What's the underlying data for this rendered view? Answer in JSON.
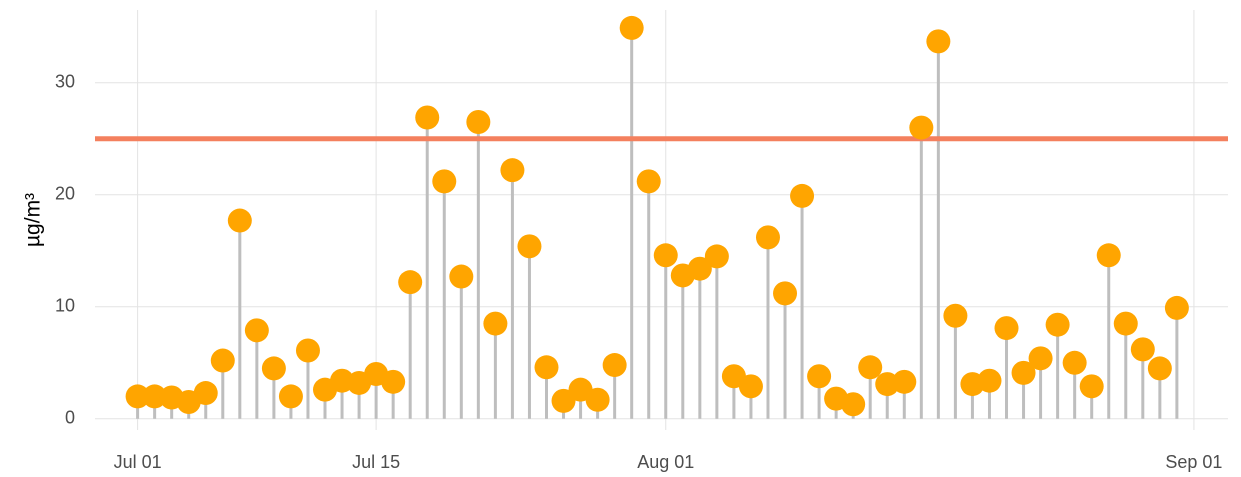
{
  "chart_data": {
    "type": "lollipop",
    "y_label": "µg/m³",
    "x": [
      0,
      1,
      2,
      3,
      4,
      5,
      6,
      7,
      8,
      9,
      10,
      11,
      12,
      13,
      14,
      15,
      16,
      17,
      18,
      19,
      20,
      21,
      22,
      23,
      24,
      25,
      26,
      27,
      28,
      29,
      30,
      31,
      32,
      33,
      34,
      35,
      36,
      37,
      38,
      39,
      40,
      41,
      42,
      43,
      44,
      45,
      46,
      47,
      48,
      49,
      50,
      51,
      52,
      53,
      54,
      55,
      56,
      57,
      58,
      59,
      60,
      61
    ],
    "values": [
      2.0,
      2.0,
      1.9,
      1.5,
      2.3,
      5.2,
      17.7,
      7.9,
      4.5,
      2.0,
      6.1,
      2.6,
      3.4,
      3.2,
      4.0,
      3.3,
      12.2,
      26.9,
      21.2,
      12.7,
      26.5,
      8.5,
      22.2,
      15.4,
      4.6,
      1.6,
      2.6,
      1.7,
      4.8,
      34.9,
      21.2,
      14.6,
      12.8,
      13.4,
      14.5,
      3.8,
      2.9,
      16.2,
      11.2,
      19.9,
      3.8,
      1.8,
      1.3,
      4.6,
      3.1,
      3.3,
      26.0,
      33.7,
      9.2,
      3.1,
      3.4,
      8.1,
      4.1,
      5.4,
      8.4,
      5.0,
      2.9,
      14.6,
      8.5,
      6.2,
      4.5,
      9.9
    ],
    "color": "#ffa500",
    "stem_color": "#bebebe",
    "threshold": 25,
    "threshold_color": "#f4805e",
    "xlim": [
      -2.5,
      64
    ],
    "xticks": [
      {
        "value": 0,
        "label": "Jul 01"
      },
      {
        "value": 14,
        "label": "Jul 15"
      },
      {
        "value": 31,
        "label": "Aug 01"
      },
      {
        "value": 62,
        "label": "Sep 01"
      }
    ],
    "ylim": [
      -1,
      36.5
    ],
    "yticks": [
      0,
      10,
      20,
      30
    ],
    "grid": true
  }
}
